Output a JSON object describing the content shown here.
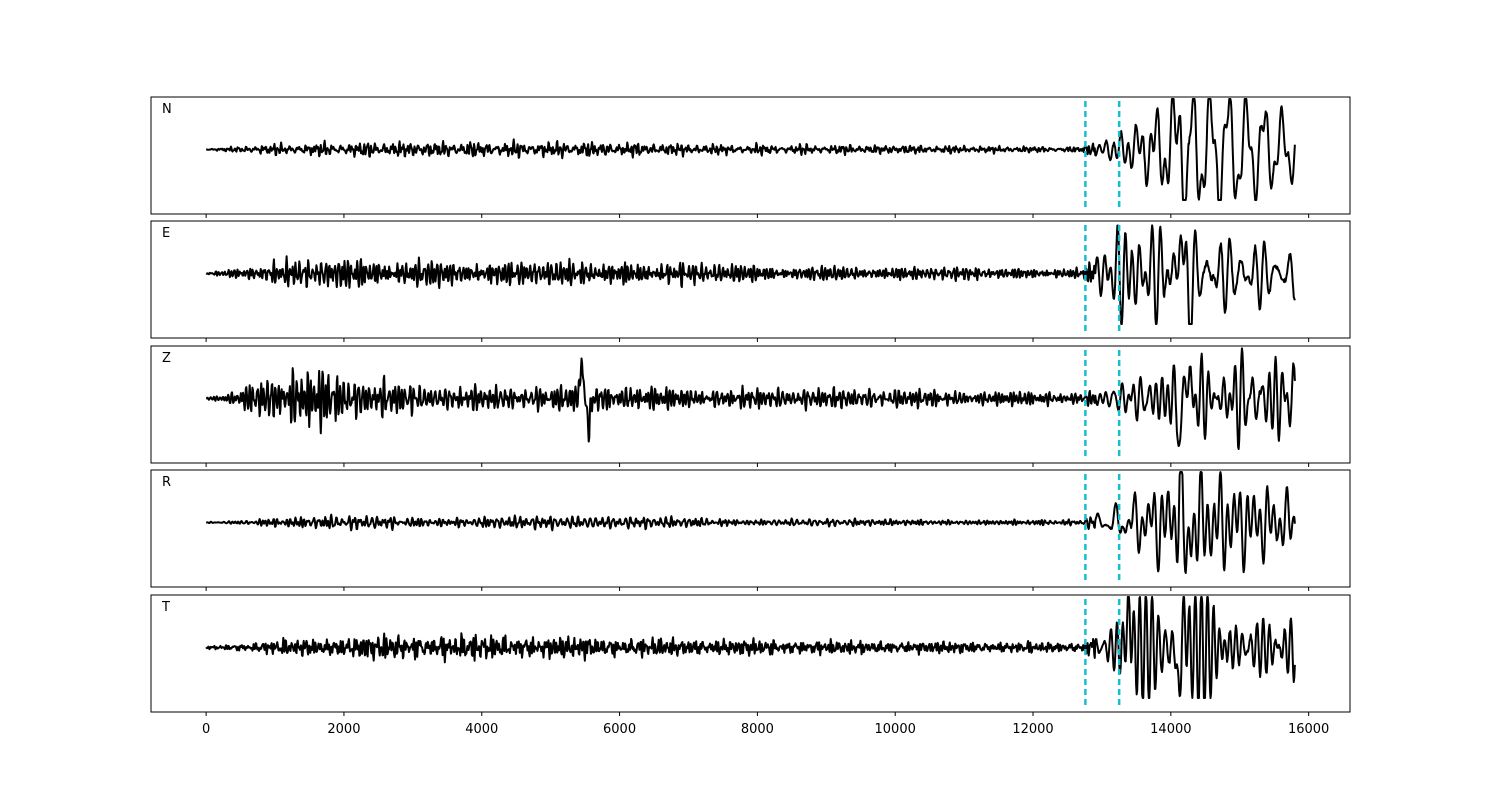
{
  "chart_data": {
    "type": "line",
    "xlim": [
      -800,
      16600
    ],
    "x_ticks": [
      0,
      2000,
      4000,
      6000,
      8000,
      10000,
      12000,
      14000,
      16000
    ],
    "x_tick_labels": [
      "0",
      "2000",
      "4000",
      "6000",
      "8000",
      "10000",
      "12000",
      "14000",
      "16000"
    ],
    "sample_count": 15800,
    "markers": {
      "x": [
        12760,
        13250
      ],
      "color": "#17becf",
      "style": "dashed"
    },
    "trace_color": "#000000",
    "panels": [
      {
        "channel": "N",
        "envelope": [
          {
            "x": 0,
            "amp": 0.01
          },
          {
            "x": 400,
            "amp": 0.04
          },
          {
            "x": 800,
            "amp": 0.08
          },
          {
            "x": 2500,
            "amp": 0.12
          },
          {
            "x": 5500,
            "amp": 0.12
          },
          {
            "x": 7500,
            "amp": 0.08
          },
          {
            "x": 10000,
            "amp": 0.07
          },
          {
            "x": 12700,
            "amp": 0.04
          },
          {
            "x": 13000,
            "amp": 0.2
          },
          {
            "x": 13300,
            "amp": 0.45
          },
          {
            "x": 14100,
            "amp": 0.9
          },
          {
            "x": 15800,
            "amp": 0.45
          }
        ],
        "peaks": [
          {
            "x": 14150,
            "amp": 0.82
          },
          {
            "x": 14220,
            "amp": -0.95
          }
        ]
      },
      {
        "channel": "E",
        "envelope": [
          {
            "x": 0,
            "amp": 0.02
          },
          {
            "x": 500,
            "amp": 0.1
          },
          {
            "x": 1000,
            "amp": 0.2
          },
          {
            "x": 2200,
            "amp": 0.26
          },
          {
            "x": 3500,
            "amp": 0.2
          },
          {
            "x": 6200,
            "amp": 0.2
          },
          {
            "x": 8500,
            "amp": 0.12
          },
          {
            "x": 11500,
            "amp": 0.1
          },
          {
            "x": 12700,
            "amp": 0.08
          },
          {
            "x": 13000,
            "amp": 0.35
          },
          {
            "x": 13300,
            "amp": 0.7
          },
          {
            "x": 14200,
            "amp": 0.9
          },
          {
            "x": 15800,
            "amp": 0.6
          }
        ],
        "peaks": [
          {
            "x": 14150,
            "amp": 0.9
          },
          {
            "x": 14270,
            "amp": -0.75
          }
        ]
      },
      {
        "channel": "Z",
        "envelope": [
          {
            "x": 0,
            "amp": 0.02
          },
          {
            "x": 400,
            "amp": 0.1
          },
          {
            "x": 800,
            "amp": 0.5
          },
          {
            "x": 1700,
            "amp": 0.55
          },
          {
            "x": 2500,
            "amp": 0.3
          },
          {
            "x": 3500,
            "amp": 0.18
          },
          {
            "x": 5200,
            "amp": 0.22
          },
          {
            "x": 5600,
            "amp": 0.3
          },
          {
            "x": 7000,
            "amp": 0.18
          },
          {
            "x": 10000,
            "amp": 0.15
          },
          {
            "x": 12700,
            "amp": 0.12
          },
          {
            "x": 13300,
            "amp": 0.2
          },
          {
            "x": 14000,
            "amp": 0.55
          },
          {
            "x": 15800,
            "amp": 0.6
          }
        ],
        "peaks": [
          {
            "x": 5450,
            "amp": 0.65
          },
          {
            "x": 5550,
            "amp": -0.55
          },
          {
            "x": 14230,
            "amp": 0.75
          },
          {
            "x": 14140,
            "amp": -0.9
          }
        ]
      },
      {
        "channel": "R",
        "envelope": [
          {
            "x": 0,
            "amp": 0.01
          },
          {
            "x": 500,
            "amp": 0.04
          },
          {
            "x": 1000,
            "amp": 0.1
          },
          {
            "x": 5500,
            "amp": 0.1
          },
          {
            "x": 8000,
            "amp": 0.06
          },
          {
            "x": 12700,
            "amp": 0.05
          },
          {
            "x": 13000,
            "amp": 0.2
          },
          {
            "x": 13300,
            "amp": 0.4
          },
          {
            "x": 14100,
            "amp": 0.7
          },
          {
            "x": 15800,
            "amp": 0.4
          }
        ],
        "peaks": [
          {
            "x": 14130,
            "amp": 0.88
          },
          {
            "x": 14230,
            "amp": -0.95
          }
        ]
      },
      {
        "channel": "T",
        "envelope": [
          {
            "x": 0,
            "amp": 0.02
          },
          {
            "x": 500,
            "amp": 0.06
          },
          {
            "x": 1000,
            "amp": 0.12
          },
          {
            "x": 2500,
            "amp": 0.2
          },
          {
            "x": 4000,
            "amp": 0.2
          },
          {
            "x": 7000,
            "amp": 0.14
          },
          {
            "x": 10000,
            "amp": 0.1
          },
          {
            "x": 12700,
            "amp": 0.08
          },
          {
            "x": 13000,
            "amp": 0.35
          },
          {
            "x": 13400,
            "amp": 0.7
          },
          {
            "x": 14200,
            "amp": 0.8
          },
          {
            "x": 15800,
            "amp": 0.5
          }
        ],
        "peaks": [
          {
            "x": 13390,
            "amp": 0.78
          },
          {
            "x": 14120,
            "amp": -0.95
          },
          {
            "x": 14190,
            "amp": 0.72
          }
        ]
      }
    ]
  }
}
